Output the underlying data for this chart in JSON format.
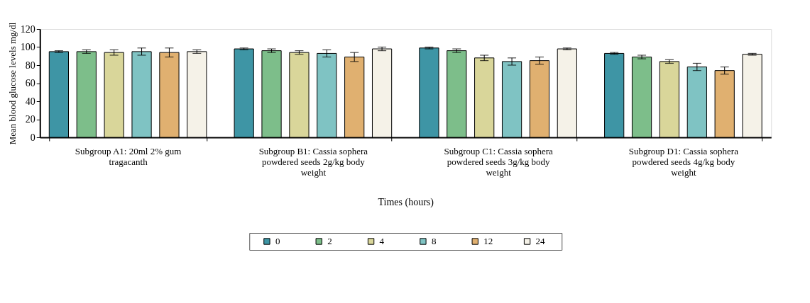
{
  "chart_data": {
    "type": "bar",
    "xlabel": "Times (hours)",
    "ylabel": "Mean blood glucose levels mg/dl",
    "categories": [
      "Subgroup A1: 20ml 2% gum tragacanth",
      "Subgroup B1: Cassia sophera powdered seeds 2g/kg body weight",
      "Subgroup C1: Cassia sophera powdered seeds 3g/kg body weight",
      "Subgroup D1: Cassia sophera powdered seeds 4g/kg body weight"
    ],
    "series": [
      {
        "name": "0",
        "color": "#3e95a5",
        "values": [
          95,
          98,
          99,
          93
        ],
        "errors": [
          1,
          1,
          1,
          1
        ]
      },
      {
        "name": "2",
        "color": "#7dbe8a",
        "values": [
          95,
          96,
          96,
          89
        ],
        "errors": [
          2,
          2,
          2,
          2
        ]
      },
      {
        "name": "4",
        "color": "#d9d69a",
        "values": [
          94,
          94,
          88,
          84
        ],
        "errors": [
          3,
          2,
          3,
          2
        ]
      },
      {
        "name": "8",
        "color": "#7fc3c3",
        "values": [
          95,
          93,
          84,
          78
        ],
        "errors": [
          4,
          4,
          4,
          4
        ]
      },
      {
        "name": "12",
        "color": "#e0b070",
        "values": [
          94,
          89,
          85,
          74
        ],
        "errors": [
          5,
          5,
          4,
          4
        ]
      },
      {
        "name": "24",
        "color": "#f5f2e8",
        "values": [
          95,
          98,
          98,
          92
        ],
        "errors": [
          2,
          2,
          1,
          1
        ]
      }
    ],
    "ylim": [
      0,
      120
    ],
    "yticks": [
      0,
      20,
      40,
      60,
      80,
      100,
      120
    ],
    "grid": false,
    "legend": "bottom"
  }
}
